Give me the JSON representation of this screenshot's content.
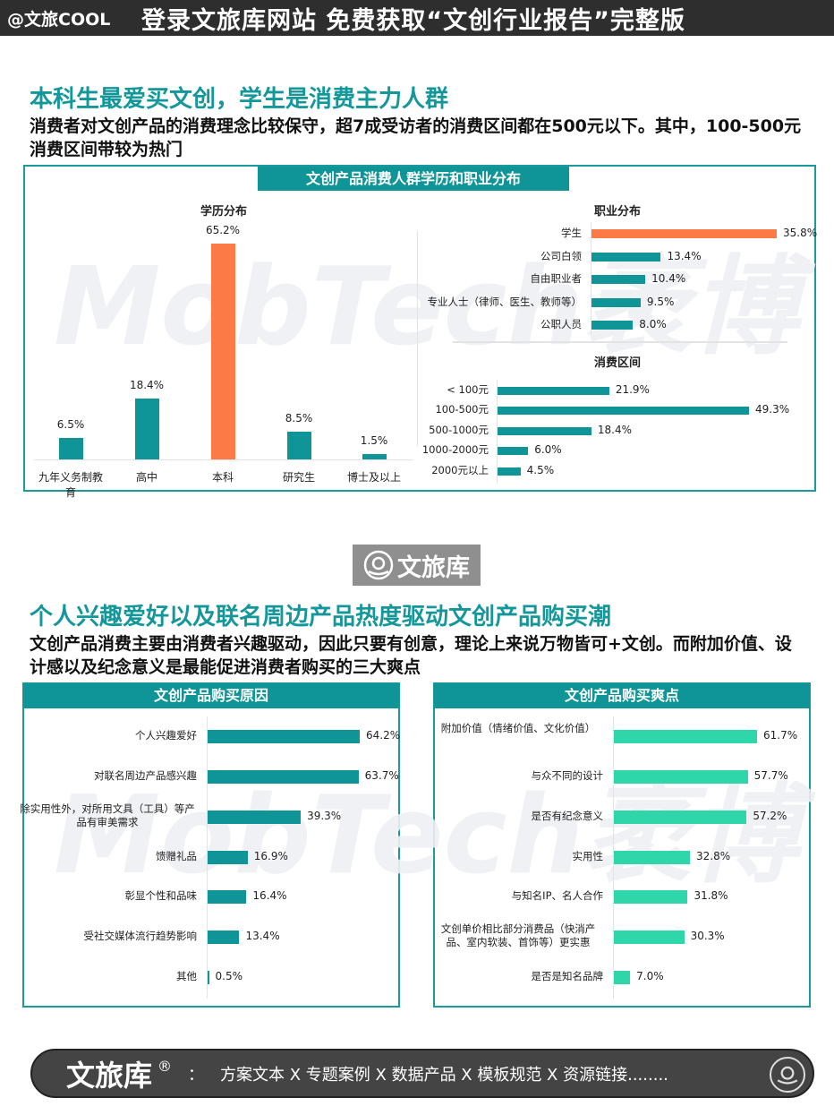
{
  "topbar": {
    "handle": "@文旅COOL",
    "promo": "登录文旅库网站 免费获取“文创行业报告”完整版"
  },
  "section1": {
    "title": "本科生最爱买文创，学生是消费主力人群",
    "subtitle": "消费者对文创产品的消费理念比较保守，超7成受访者的消费区间都在500元以下。其中，100-500元消费区间带较为热门",
    "panel_title": "文创产品消费人群学历和职业分布",
    "watermark": "MobTech袤博"
  },
  "logo": {
    "icon": "wenlvku-logo-icon",
    "text": "文旅库"
  },
  "section2": {
    "title": "个人兴趣爱好以及联名周边产品热度驱动文创产品购买潮",
    "subtitle": "文创产品消费主要由消费者兴趣驱动，因此只要有创意，理论上来说万物皆可+文创。而附加价值、设计感以及纪念意义是最能促进消费者购买的三大爽点",
    "left_panel_title": "文创产品购买原因",
    "right_panel_title": "文创产品购买爽点"
  },
  "footer": {
    "brand": "文旅库",
    "reg": "®",
    "colon": "：",
    "links": "方案文本 X 专题案例 X 数据产品 X 模板规范 X 资源链接........",
    "icon": "wenlvku-logo-icon"
  },
  "colors": {
    "teal": "#0f9597",
    "orange": "#fb7a45",
    "mint": "#2fd6aa",
    "title_teal": "#14979a",
    "dark_bar": "#2e2e2e"
  },
  "chart_data": [
    {
      "type": "bar",
      "title": "学历分布",
      "categories": [
        "九年义务制教育",
        "高中",
        "本科",
        "研究生",
        "博士及以上"
      ],
      "values": [
        6.5,
        18.4,
        65.2,
        8.5,
        1.5
      ],
      "labels": [
        "6.5%",
        "18.4%",
        "65.2%",
        "8.5%",
        "1.5%"
      ],
      "highlight": "本科",
      "unit": "%"
    },
    {
      "type": "bar",
      "orientation": "horizontal",
      "title": "职业分布",
      "categories": [
        "学生",
        "公司白领",
        "自由职业者",
        "专业人士（律师、医生、教师等）",
        "公职人员"
      ],
      "values": [
        35.8,
        13.4,
        10.4,
        9.5,
        8.0
      ],
      "labels": [
        "35.8%",
        "13.4%",
        "10.4%",
        "9.5%",
        "8.0%"
      ],
      "highlight": "学生",
      "unit": "%"
    },
    {
      "type": "bar",
      "orientation": "horizontal",
      "title": "消费区间",
      "categories": [
        "< 100元",
        "100-500元",
        "500-1000元",
        "1000-2000元",
        "2000元以上"
      ],
      "values": [
        21.9,
        49.3,
        18.4,
        6.0,
        4.5
      ],
      "labels": [
        "21.9%",
        "49.3%",
        "18.4%",
        "6.0%",
        "4.5%"
      ],
      "unit": "%"
    },
    {
      "type": "bar",
      "orientation": "horizontal",
      "title": "文创产品购买原因",
      "categories": [
        "个人兴趣爱好",
        "对联名周边产品感兴趣",
        "除实用性外，对所用文具（工具）等产品有审美需求",
        "馈赠礼品",
        "彰显个性和品味",
        "受社交媒体流行趋势影响",
        "其他"
      ],
      "values": [
        64.2,
        63.7,
        39.3,
        16.9,
        16.4,
        13.4,
        0.5
      ],
      "labels": [
        "64.2%",
        "63.7%",
        "39.3%",
        "16.9%",
        "16.4%",
        "13.4%",
        "0.5%"
      ],
      "unit": "%"
    },
    {
      "type": "bar",
      "orientation": "horizontal",
      "title": "文创产品购买爽点",
      "categories": [
        "附加价值（情绪价值、文化价值）",
        "与众不同的设计",
        "是否有纪念意义",
        "实用性",
        "与知名IP、名人合作",
        "文创单价相比部分消费品（快消产品、室内软装、首饰等）更实惠",
        "是否是知名品牌"
      ],
      "values": [
        61.7,
        57.7,
        57.2,
        32.8,
        31.8,
        30.3,
        7.0
      ],
      "labels": [
        "61.7%",
        "57.7%",
        "57.2%",
        "32.8%",
        "31.8%",
        "30.3%",
        "7.0%"
      ],
      "unit": "%"
    }
  ]
}
